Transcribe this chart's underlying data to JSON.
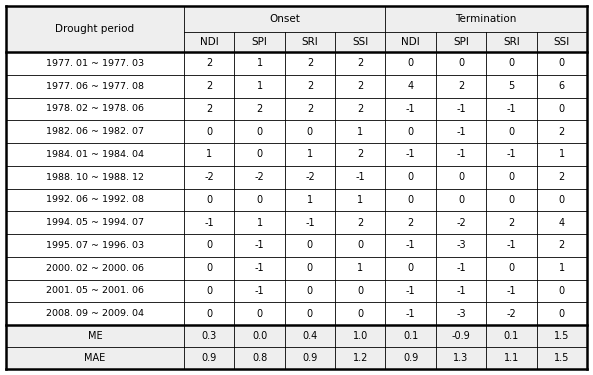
{
  "col_header_row1": [
    "Drought period",
    "Onset",
    "Termination"
  ],
  "col_header_row2": [
    "NDI",
    "SPI",
    "SRI",
    "SSI",
    "NDI",
    "SPI",
    "SRI",
    "SSI"
  ],
  "rows": [
    [
      "1977. 01 ~ 1977. 03",
      "2",
      "1",
      "2",
      "2",
      "0",
      "0",
      "0",
      "0"
    ],
    [
      "1977. 06 ~ 1977. 08",
      "2",
      "1",
      "2",
      "2",
      "4",
      "2",
      "5",
      "6"
    ],
    [
      "1978. 02 ~ 1978. 06",
      "2",
      "2",
      "2",
      "2",
      "-1",
      "-1",
      "-1",
      "0"
    ],
    [
      "1982. 06 ~ 1982. 07",
      "0",
      "0",
      "0",
      "1",
      "0",
      "-1",
      "0",
      "2"
    ],
    [
      "1984. 01 ~ 1984. 04",
      "1",
      "0",
      "1",
      "2",
      "-1",
      "-1",
      "-1",
      "1"
    ],
    [
      "1988. 10 ~ 1988. 12",
      "-2",
      "-2",
      "-2",
      "-1",
      "0",
      "0",
      "0",
      "2"
    ],
    [
      "1992. 06 ~ 1992. 08",
      "0",
      "0",
      "1",
      "1",
      "0",
      "0",
      "0",
      "0"
    ],
    [
      "1994. 05 ~ 1994. 07",
      "-1",
      "1",
      "-1",
      "2",
      "2",
      "-2",
      "2",
      "4"
    ],
    [
      "1995. 07 ~ 1996. 03",
      "0",
      "-1",
      "0",
      "0",
      "-1",
      "-3",
      "-1",
      "2"
    ],
    [
      "2000. 02 ~ 2000. 06",
      "0",
      "-1",
      "0",
      "1",
      "0",
      "-1",
      "0",
      "1"
    ],
    [
      "2001. 05 ~ 2001. 06",
      "0",
      "-1",
      "0",
      "0",
      "-1",
      "-1",
      "-1",
      "0"
    ],
    [
      "2008. 09 ~ 2009. 04",
      "0",
      "0",
      "0",
      "0",
      "-1",
      "-3",
      "-2",
      "0"
    ]
  ],
  "stat_rows": [
    [
      "ME",
      "0.3",
      "0.0",
      "0.4",
      "1.0",
      "0.1",
      "-0.9",
      "0.1",
      "1.5"
    ],
    [
      "MAE",
      "0.9",
      "0.8",
      "0.9",
      "1.2",
      "0.9",
      "1.3",
      "1.1",
      "1.5"
    ]
  ],
  "bg_header": "#eeeeee",
  "bg_white": "#ffffff",
  "font_size_header": 7.5,
  "font_size_data": 7.0,
  "font_size_period": 6.8
}
